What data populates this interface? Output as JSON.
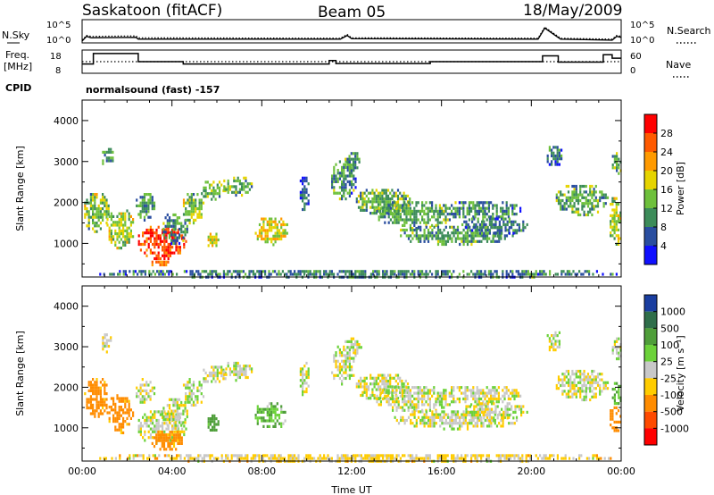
{
  "header": {
    "left": "Saskatoon (fitACF)",
    "center": "Beam 05",
    "right": "18/May/2009"
  },
  "sky_panel": {
    "left_label": "N.Sky",
    "right_label": "N.Search",
    "left_ticks": [
      "10^5",
      "10^0"
    ],
    "right_ticks": [
      "10^5",
      "10^0"
    ]
  },
  "freq_panel": {
    "left_label_1": "Freq.",
    "left_label_2": "[MHz]",
    "right_label": "Nave",
    "left_ticks": [
      "18",
      "8"
    ],
    "right_ticks": [
      "60",
      "0"
    ]
  },
  "cpid": {
    "label": "CPID",
    "value": "normalsound (fast) -157"
  },
  "chart_data": [
    {
      "type": "line",
      "name": "sky-noise-panel",
      "x_unit": "hours UT",
      "ylim_log10": [
        0,
        5
      ],
      "series": [
        {
          "name": "N.Sky",
          "style": "solid",
          "x": [
            0,
            0.2,
            0.4,
            2.4,
            2.5,
            11.5,
            11.8,
            12,
            20.3,
            20.6,
            21.3,
            23.6,
            23.8,
            24
          ],
          "log10_value": [
            0.4,
            1.4,
            1.1,
            1.2,
            0.8,
            0.8,
            1.6,
            0.9,
            0.8,
            3.2,
            0.8,
            0.6,
            1.4,
            1.2
          ]
        },
        {
          "name": "N.Search",
          "style": "dotted",
          "x": [
            0,
            0.2,
            0.4,
            2.4,
            2.5,
            11.5,
            11.8,
            12,
            20.3,
            20.6,
            21.3,
            23.6,
            23.8,
            24
          ],
          "log10_value": [
            0.6,
            1.6,
            1.4,
            1.5,
            1.1,
            1.0,
            1.8,
            1.1,
            1.0,
            3.4,
            1.0,
            0.8,
            1.6,
            1.4
          ]
        }
      ]
    },
    {
      "type": "line",
      "name": "frequency-nave-panel",
      "x_unit": "hours UT",
      "ylim_freq": [
        8,
        18
      ],
      "ylim_nave": [
        0,
        60
      ],
      "series": [
        {
          "name": "Freq.",
          "style": "solid",
          "x": [
            0,
            0.5,
            0.5,
            2.5,
            2.5,
            4.5,
            4.5,
            11.0,
            11.0,
            11.3,
            11.3,
            15.5,
            15.5,
            20.5,
            20.5,
            21.2,
            21.2,
            23.2,
            23.2,
            23.6,
            23.6,
            24
          ],
          "value": [
            12,
            12,
            16.5,
            16.5,
            13,
            13,
            12,
            12,
            13.5,
            13.5,
            12.2,
            12.2,
            13,
            13,
            15.5,
            15.5,
            12.8,
            12.8,
            16,
            16,
            14.5,
            14.5
          ]
        },
        {
          "name": "Nave",
          "style": "dotted",
          "x": [
            0,
            24
          ],
          "value": [
            30,
            30
          ]
        }
      ]
    },
    {
      "type": "heatmap",
      "name": "power-panel",
      "xlabel": "",
      "ylabel": "Slant Range [km]",
      "xlim": [
        0,
        24
      ],
      "ylim": [
        180,
        4500
      ],
      "yticks": [
        1000,
        2000,
        3000,
        4000
      ],
      "colorbar": {
        "label": "Power [dB]",
        "min": 0,
        "max": 32,
        "ticks": [
          4,
          8,
          12,
          16,
          20,
          24,
          28
        ],
        "colors": [
          "#1010ff",
          "#2a4ea0",
          "#3d8c5a",
          "#6ec03c",
          "#e6d400",
          "#ff9a00",
          "#ff5a00",
          "#ff0000"
        ]
      },
      "regions": [
        {
          "t0": 0.0,
          "t1": 1.2,
          "r0": 1300,
          "r1": 2300,
          "v": 14
        },
        {
          "t0": 0.8,
          "t1": 1.4,
          "r0": 2900,
          "r1": 3400,
          "v": 10
        },
        {
          "t0": 1.0,
          "t1": 2.3,
          "r0": 900,
          "r1": 1900,
          "v": 16
        },
        {
          "t0": 2.3,
          "t1": 3.2,
          "r0": 1600,
          "r1": 2300,
          "v": 10
        },
        {
          "t0": 2.4,
          "t1": 4.6,
          "r0": 600,
          "r1": 1500,
          "v": 28
        },
        {
          "t0": 3.0,
          "t1": 4.0,
          "r0": 450,
          "r1": 650,
          "v": 24
        },
        {
          "t0": 3.5,
          "t1": 4.7,
          "r0": 1000,
          "r1": 1800,
          "v": 10
        },
        {
          "t0": 4.4,
          "t1": 5.4,
          "r0": 1500,
          "r1": 2300,
          "v": 14
        },
        {
          "t0": 5.2,
          "t1": 6.4,
          "r0": 2100,
          "r1": 2600,
          "v": 14
        },
        {
          "t0": 6.2,
          "t1": 7.6,
          "r0": 2200,
          "r1": 2700,
          "v": 12
        },
        {
          "t0": 5.5,
          "t1": 6.1,
          "r0": 900,
          "r1": 1400,
          "v": 18
        },
        {
          "t0": 7.6,
          "t1": 9.2,
          "r0": 1000,
          "r1": 1700,
          "v": 18
        },
        {
          "t0": 9.6,
          "t1": 10.1,
          "r0": 1800,
          "r1": 2700,
          "v": 8
        },
        {
          "t0": 11.0,
          "t1": 12.2,
          "r0": 2100,
          "r1": 3100,
          "v": 10
        },
        {
          "t0": 11.6,
          "t1": 12.4,
          "r0": 2800,
          "r1": 3300,
          "v": 10
        },
        {
          "t0": 12.1,
          "t1": 14.6,
          "r0": 1700,
          "r1": 2400,
          "v": 12
        },
        {
          "t0": 13.0,
          "t1": 16.5,
          "r0": 1400,
          "r1": 2100,
          "v": 12
        },
        {
          "t0": 13.8,
          "t1": 19.5,
          "r0": 1000,
          "r1": 1500,
          "v": 11
        },
        {
          "t0": 15.8,
          "t1": 19.5,
          "r0": 1600,
          "r1": 2100,
          "v": 10
        },
        {
          "t0": 16.8,
          "t1": 19.8,
          "r0": 1200,
          "r1": 1700,
          "v": 9
        },
        {
          "t0": 20.6,
          "t1": 21.4,
          "r0": 2900,
          "r1": 3450,
          "v": 8
        },
        {
          "t0": 21.0,
          "t1": 23.4,
          "r0": 1700,
          "r1": 2500,
          "v": 12
        },
        {
          "t0": 23.4,
          "t1": 24.0,
          "r0": 900,
          "r1": 2200,
          "v": 16
        },
        {
          "t0": 23.5,
          "t1": 24.0,
          "r0": 2700,
          "r1": 3300,
          "v": 12
        },
        {
          "t0": 0.5,
          "t1": 24.0,
          "r0": 180,
          "r1": 420,
          "v": 9
        }
      ]
    },
    {
      "type": "heatmap",
      "name": "velocity-panel",
      "xlabel": "Time UT",
      "ylabel": "Slant Range [km]",
      "xlim": [
        0,
        24
      ],
      "ylim": [
        180,
        4500
      ],
      "xticks": [
        "00:00",
        "04:00",
        "08:00",
        "12:00",
        "16:00",
        "20:00",
        "00:00"
      ],
      "yticks": [
        1000,
        2000,
        3000,
        4000
      ],
      "colorbar": {
        "label": "Velocity [m s⁻¹]",
        "ticks": [
          "1000",
          "500",
          "100",
          "25",
          "-25",
          "-100",
          "-500",
          "-1000"
        ],
        "colors": [
          "#1a3ea0",
          "#2f6e4a",
          "#4f9e3a",
          "#6cd23a",
          "#c8c8c8",
          "#ffcc00",
          "#ff8c00",
          "#ff4a00",
          "#ff0000"
        ]
      },
      "regions": [
        {
          "t0": 0.0,
          "t1": 1.2,
          "r0": 1300,
          "r1": 2300,
          "v": -150
        },
        {
          "t0": 0.8,
          "t1": 1.4,
          "r0": 2900,
          "r1": 3400,
          "v": 0
        },
        {
          "t0": 1.0,
          "t1": 2.3,
          "r0": 900,
          "r1": 1900,
          "v": -150
        },
        {
          "t0": 2.3,
          "t1": 3.2,
          "r0": 1600,
          "r1": 2300,
          "v": 0
        },
        {
          "t0": 2.4,
          "t1": 4.6,
          "r0": 600,
          "r1": 1500,
          "v": 0
        },
        {
          "t0": 3.0,
          "t1": 4.5,
          "r0": 450,
          "r1": 1000,
          "v": -150
        },
        {
          "t0": 3.5,
          "t1": 4.7,
          "r0": 1000,
          "r1": 1800,
          "v": 0
        },
        {
          "t0": 4.4,
          "t1": 5.4,
          "r0": 1500,
          "r1": 2300,
          "v": 0
        },
        {
          "t0": 5.2,
          "t1": 6.4,
          "r0": 2100,
          "r1": 2600,
          "v": 0
        },
        {
          "t0": 6.2,
          "t1": 7.6,
          "r0": 2200,
          "r1": 2700,
          "v": 0
        },
        {
          "t0": 5.5,
          "t1": 6.1,
          "r0": 900,
          "r1": 1400,
          "v": 150
        },
        {
          "t0": 7.6,
          "t1": 9.2,
          "r0": 1000,
          "r1": 1700,
          "v": 80
        },
        {
          "t0": 9.6,
          "t1": 10.1,
          "r0": 1800,
          "r1": 2700,
          "v": 0
        },
        {
          "t0": 11.0,
          "t1": 12.2,
          "r0": 2100,
          "r1": 3100,
          "v": 0
        },
        {
          "t0": 11.6,
          "t1": 12.4,
          "r0": 2800,
          "r1": 3300,
          "v": 0
        },
        {
          "t0": 12.1,
          "t1": 14.6,
          "r0": 1700,
          "r1": 2400,
          "v": 0
        },
        {
          "t0": 13.0,
          "t1": 16.5,
          "r0": 1400,
          "r1": 2100,
          "v": 0
        },
        {
          "t0": 13.8,
          "t1": 19.5,
          "r0": 1000,
          "r1": 1500,
          "v": 0
        },
        {
          "t0": 15.8,
          "t1": 19.5,
          "r0": 1600,
          "r1": 2100,
          "v": 0
        },
        {
          "t0": 16.8,
          "t1": 19.8,
          "r0": 1200,
          "r1": 1700,
          "v": 0
        },
        {
          "t0": 20.6,
          "t1": 21.4,
          "r0": 2900,
          "r1": 3450,
          "v": 0
        },
        {
          "t0": 21.0,
          "t1": 23.4,
          "r0": 1700,
          "r1": 2500,
          "v": 0
        },
        {
          "t0": 23.4,
          "t1": 24.0,
          "r0": 900,
          "r1": 1600,
          "v": -250
        },
        {
          "t0": 23.5,
          "t1": 24.0,
          "r0": 1600,
          "r1": 2200,
          "v": 120
        },
        {
          "t0": 23.5,
          "t1": 24.0,
          "r0": 2700,
          "r1": 3300,
          "v": 0
        },
        {
          "t0": 0.5,
          "t1": 24.0,
          "r0": 180,
          "r1": 420,
          "v": -40
        }
      ]
    }
  ]
}
